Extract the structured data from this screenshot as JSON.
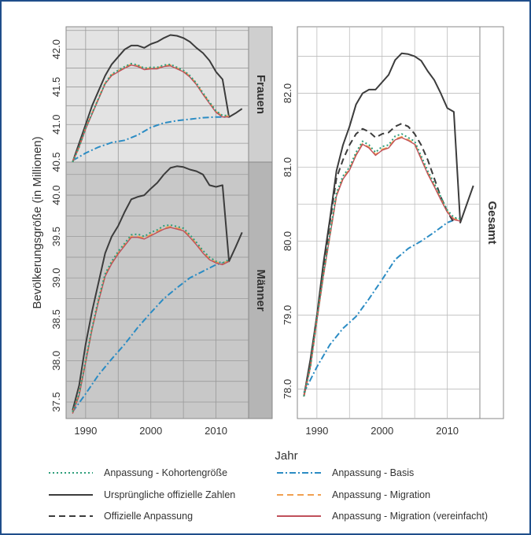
{
  "colors": {
    "kohorte": "#2e9e7a",
    "orig": "#3c3c3c",
    "offiz": "#3c3c3c",
    "basis": "#2b8cc4",
    "migration": "#f0a050",
    "migvereinf": "#c0505a",
    "frauen_bg": "#e3e3e3",
    "maenner_bg": "#c8c8c8",
    "gesamt_bg": "#ffffff",
    "frame": "#1f4e8a"
  },
  "chart_data": {
    "type": "line",
    "xlabel": "Jahr",
    "ylabel": "Bevölkerungsgröße (in Millionen)",
    "legend_position": "bottom",
    "legend": [
      {
        "key": "kohorte",
        "label": "Anpassung - Kohortengröße",
        "style": "dotted"
      },
      {
        "key": "basis",
        "label": "Anpassung - Basis",
        "style": "dashdot"
      },
      {
        "key": "orig",
        "label": "Ursprüngliche offizielle Zahlen",
        "style": "solid"
      },
      {
        "key": "migration",
        "label": "Anpassung - Migration",
        "style": "dashed"
      },
      {
        "key": "offiz",
        "label": "Offizielle Anpassung",
        "style": "dashed"
      },
      {
        "key": "migvereinf",
        "label": "Anpassung - Migration (vereinfacht)",
        "style": "solid"
      }
    ],
    "panels": [
      {
        "id": "frauen",
        "strip": "Frauen",
        "xlim": [
          1987,
          2015
        ],
        "ylim": [
          40.5,
          42.3
        ],
        "yticks": [
          "40.5",
          "41.0",
          "41.5",
          "42.0"
        ],
        "xticks": [],
        "series": [
          {
            "key": "orig",
            "x": [
              1988,
              1989,
              1990,
              1991,
              1992,
              1993,
              1994,
              1995,
              1996,
              1997,
              1998,
              1999,
              2000,
              2001,
              2002,
              2003,
              2004,
              2005,
              2006,
              2007,
              2008,
              2009,
              2010,
              2011,
              2012,
              2013,
              2014
            ],
            "y": [
              40.5,
              40.75,
              41.0,
              41.25,
              41.45,
              41.65,
              41.8,
              41.9,
              42.0,
              42.05,
              42.05,
              42.02,
              42.07,
              42.1,
              42.15,
              42.19,
              42.18,
              42.15,
              42.1,
              42.02,
              41.95,
              41.85,
              41.7,
              41.6,
              41.1,
              41.15,
              41.21
            ]
          },
          {
            "key": "kohorte",
            "x": [
              1988,
              1989,
              1990,
              1991,
              1992,
              1993,
              1994,
              1995,
              1996,
              1997,
              1998,
              1999,
              2000,
              2001,
              2002,
              2003,
              2004,
              2005,
              2006,
              2007,
              2008,
              2009,
              2010,
              2011,
              2012
            ],
            "y": [
              40.5,
              40.7,
              40.95,
              41.15,
              41.35,
              41.55,
              41.67,
              41.72,
              41.77,
              41.81,
              41.79,
              41.75,
              41.76,
              41.76,
              41.79,
              41.8,
              41.76,
              41.72,
              41.65,
              41.55,
              41.42,
              41.3,
              41.18,
              41.12,
              41.12
            ]
          },
          {
            "key": "migration",
            "x": [
              1988,
              1989,
              1990,
              1991,
              1992,
              1993,
              1994,
              1995,
              1996,
              1997,
              1998,
              1999,
              2000,
              2001,
              2002,
              2003,
              2004,
              2005,
              2006,
              2007,
              2008,
              2009,
              2010,
              2011,
              2012
            ],
            "y": [
              40.5,
              40.7,
              40.95,
              41.15,
              41.35,
              41.55,
              41.66,
              41.71,
              41.76,
              41.8,
              41.78,
              41.74,
              41.75,
              41.75,
              41.78,
              41.79,
              41.75,
              41.71,
              41.64,
              41.54,
              41.41,
              41.29,
              41.17,
              41.11,
              41.11
            ]
          },
          {
            "key": "migvereinf",
            "x": [
              1988,
              1989,
              1990,
              1991,
              1992,
              1993,
              1994,
              1995,
              1996,
              1997,
              1998,
              1999,
              2000,
              2001,
              2002,
              2003,
              2004,
              2005,
              2006,
              2007,
              2008,
              2009,
              2010,
              2011,
              2012
            ],
            "y": [
              40.5,
              40.7,
              40.94,
              41.14,
              41.34,
              41.54,
              41.65,
              41.7,
              41.75,
              41.79,
              41.77,
              41.73,
              41.74,
              41.74,
              41.77,
              41.78,
              41.74,
              41.7,
              41.63,
              41.53,
              41.4,
              41.28,
              41.16,
              41.1,
              41.1
            ]
          },
          {
            "key": "basis",
            "x": [
              1988,
              1990,
              1992,
              1994,
              1996,
              1998,
              2000,
              2002,
              2004,
              2006,
              2008,
              2010,
              2012
            ],
            "y": [
              40.52,
              40.62,
              40.7,
              40.76,
              40.79,
              40.86,
              40.96,
              41.02,
              41.05,
              41.07,
              41.09,
              41.1,
              41.1
            ]
          }
        ]
      },
      {
        "id": "maenner",
        "strip": "Männer",
        "xlim": [
          1987,
          2015
        ],
        "ylim": [
          37.3,
          40.4
        ],
        "yticks": [
          "37.5",
          "38.0",
          "38.5",
          "39.0",
          "39.5",
          "40.0"
        ],
        "xticks": [
          "1990",
          "2000",
          "2010"
        ],
        "series": [
          {
            "key": "orig",
            "x": [
              1988,
              1989,
              1990,
              1991,
              1992,
              1993,
              1994,
              1995,
              1996,
              1997,
              1998,
              1999,
              2000,
              2001,
              2002,
              2003,
              2004,
              2005,
              2006,
              2007,
              2008,
              2009,
              2010,
              2011,
              2012,
              2013,
              2014
            ],
            "y": [
              37.4,
              37.7,
              38.2,
              38.6,
              38.95,
              39.3,
              39.5,
              39.63,
              39.8,
              39.95,
              39.98,
              40.0,
              40.08,
              40.15,
              40.25,
              40.33,
              40.35,
              40.34,
              40.31,
              40.29,
              40.25,
              40.12,
              40.1,
              40.12,
              39.2,
              39.37,
              39.55
            ]
          },
          {
            "key": "kohorte",
            "x": [
              1988,
              1989,
              1990,
              1991,
              1992,
              1993,
              1994,
              1995,
              1996,
              1997,
              1998,
              1999,
              2000,
              2001,
              2002,
              2003,
              2004,
              2005,
              2006,
              2007,
              2008,
              2009,
              2010,
              2011,
              2012
            ],
            "y": [
              37.38,
              37.6,
              38.0,
              38.4,
              38.75,
              39.05,
              39.2,
              39.32,
              39.42,
              39.52,
              39.53,
              39.5,
              39.55,
              39.58,
              39.63,
              39.64,
              39.62,
              39.6,
              39.52,
              39.43,
              39.33,
              39.25,
              39.2,
              39.18,
              39.22
            ]
          },
          {
            "key": "migration",
            "x": [
              1988,
              1989,
              1990,
              1991,
              1992,
              1993,
              1994,
              1995,
              1996,
              1997,
              1998,
              1999,
              2000,
              2001,
              2002,
              2003,
              2004,
              2005,
              2006,
              2007,
              2008,
              2009,
              2010,
              2011,
              2012
            ],
            "y": [
              37.37,
              37.59,
              37.99,
              38.39,
              38.73,
              39.03,
              39.18,
              39.3,
              39.4,
              39.5,
              39.5,
              39.48,
              39.52,
              39.56,
              39.6,
              39.62,
              39.6,
              39.58,
              39.5,
              39.41,
              39.31,
              39.23,
              39.19,
              39.17,
              39.21
            ]
          },
          {
            "key": "migvereinf",
            "x": [
              1988,
              1989,
              1990,
              1991,
              1992,
              1993,
              1994,
              1995,
              1996,
              1997,
              1998,
              1999,
              2000,
              2001,
              2002,
              2003,
              2004,
              2005,
              2006,
              2007,
              2008,
              2009,
              2010,
              2011,
              2012
            ],
            "y": [
              37.36,
              37.58,
              37.98,
              38.38,
              38.72,
              39.02,
              39.17,
              39.29,
              39.39,
              39.49,
              39.49,
              39.47,
              39.51,
              39.55,
              39.59,
              39.61,
              39.59,
              39.57,
              39.49,
              39.4,
              39.3,
              39.22,
              39.18,
              39.16,
              39.2
            ]
          },
          {
            "key": "basis",
            "x": [
              1988,
              1990,
              1992,
              1994,
              1996,
              1998,
              2000,
              2002,
              2004,
              2006,
              2008,
              2010,
              2012
            ],
            "y": [
              37.38,
              37.6,
              37.83,
              38.02,
              38.2,
              38.4,
              38.58,
              38.75,
              38.88,
              39.0,
              39.08,
              39.16,
              39.2
            ]
          }
        ]
      },
      {
        "id": "gesamt",
        "strip": "Gesamt",
        "xlim": [
          1987,
          2015
        ],
        "ylim": [
          77.6,
          82.9
        ],
        "yticks": [
          "78.0",
          "79.0",
          "80.0",
          "81.0",
          "82.0"
        ],
        "xticks": [
          "1990",
          "2000",
          "2010"
        ],
        "series": [
          {
            "key": "orig",
            "x": [
              1988,
              1989,
              1990,
              1991,
              1992,
              1993,
              1994,
              1995,
              1996,
              1997,
              1998,
              1999,
              2000,
              2001,
              2002,
              2003,
              2004,
              2005,
              2006,
              2007,
              2008,
              2009,
              2010,
              2011,
              2012,
              2013,
              2014
            ],
            "y": [
              77.9,
              78.4,
              79.0,
              79.7,
              80.3,
              80.95,
              81.3,
              81.55,
              81.85,
              82.0,
              82.05,
              82.05,
              82.15,
              82.25,
              82.45,
              82.54,
              82.53,
              82.5,
              82.44,
              82.3,
              82.18,
              82.0,
              81.8,
              81.75,
              80.25,
              80.5,
              80.75
            ]
          },
          {
            "key": "offiz",
            "x": [
              1988,
              1989,
              1990,
              1991,
              1992,
              1993,
              1994,
              1995,
              1996,
              1997,
              1998,
              1999,
              2000,
              2001,
              2002,
              2003,
              2004,
              2005,
              2006,
              2007,
              2008,
              2009,
              2010,
              2011
            ],
            "y": [
              77.9,
              78.35,
              78.95,
              79.6,
              80.25,
              80.85,
              81.1,
              81.3,
              81.45,
              81.52,
              81.48,
              81.4,
              81.45,
              81.47,
              81.55,
              81.59,
              81.55,
              81.45,
              81.3,
              81.1,
              80.85,
              80.6,
              80.4,
              80.25
            ]
          },
          {
            "key": "kohorte",
            "x": [
              1988,
              1989,
              1990,
              1991,
              1992,
              1993,
              1994,
              1995,
              1996,
              1997,
              1998,
              1999,
              2000,
              2001,
              2002,
              2003,
              2004,
              2005,
              2006,
              2007,
              2008,
              2009,
              2010,
              2011,
              2012
            ],
            "y": [
              77.9,
              78.3,
              78.95,
              79.55,
              80.1,
              80.65,
              80.88,
              81.0,
              81.2,
              81.35,
              81.3,
              81.2,
              81.28,
              81.3,
              81.42,
              81.45,
              81.4,
              81.35,
              81.15,
              80.95,
              80.78,
              80.6,
              80.42,
              80.32,
              80.3
            ]
          },
          {
            "key": "migration",
            "x": [
              1988,
              1989,
              1990,
              1991,
              1992,
              1993,
              1994,
              1995,
              1996,
              1997,
              1998,
              1999,
              2000,
              2001,
              2002,
              2003,
              2004,
              2005,
              2006,
              2007,
              2008,
              2009,
              2010,
              2011,
              2012
            ],
            "y": [
              77.9,
              78.3,
              78.94,
              79.54,
              80.08,
              80.62,
              80.85,
              80.97,
              81.17,
              81.32,
              81.27,
              81.17,
              81.24,
              81.27,
              81.38,
              81.41,
              81.37,
              81.32,
              81.12,
              80.92,
              80.75,
              80.57,
              80.4,
              80.3,
              80.28
            ]
          },
          {
            "key": "migvereinf",
            "x": [
              1988,
              1989,
              1990,
              1991,
              1992,
              1993,
              1994,
              1995,
              1996,
              1997,
              1998,
              1999,
              2000,
              2001,
              2002,
              2003,
              2004,
              2005,
              2006,
              2007,
              2008,
              2009,
              2010,
              2011,
              2012
            ],
            "y": [
              77.9,
              78.3,
              78.93,
              79.53,
              80.07,
              80.61,
              80.84,
              80.96,
              81.16,
              81.31,
              81.26,
              81.16,
              81.23,
              81.26,
              81.37,
              81.4,
              81.36,
              81.31,
              81.11,
              80.91,
              80.74,
              80.56,
              80.39,
              80.29,
              80.27
            ]
          },
          {
            "key": "basis",
            "x": [
              1988,
              1990,
              1992,
              1994,
              1996,
              1998,
              2000,
              2002,
              2004,
              2006,
              2008,
              2010,
              2012
            ],
            "y": [
              77.95,
              78.3,
              78.6,
              78.82,
              78.98,
              79.22,
              79.48,
              79.75,
              79.9,
              80.0,
              80.12,
              80.25,
              80.32
            ]
          }
        ]
      }
    ]
  }
}
